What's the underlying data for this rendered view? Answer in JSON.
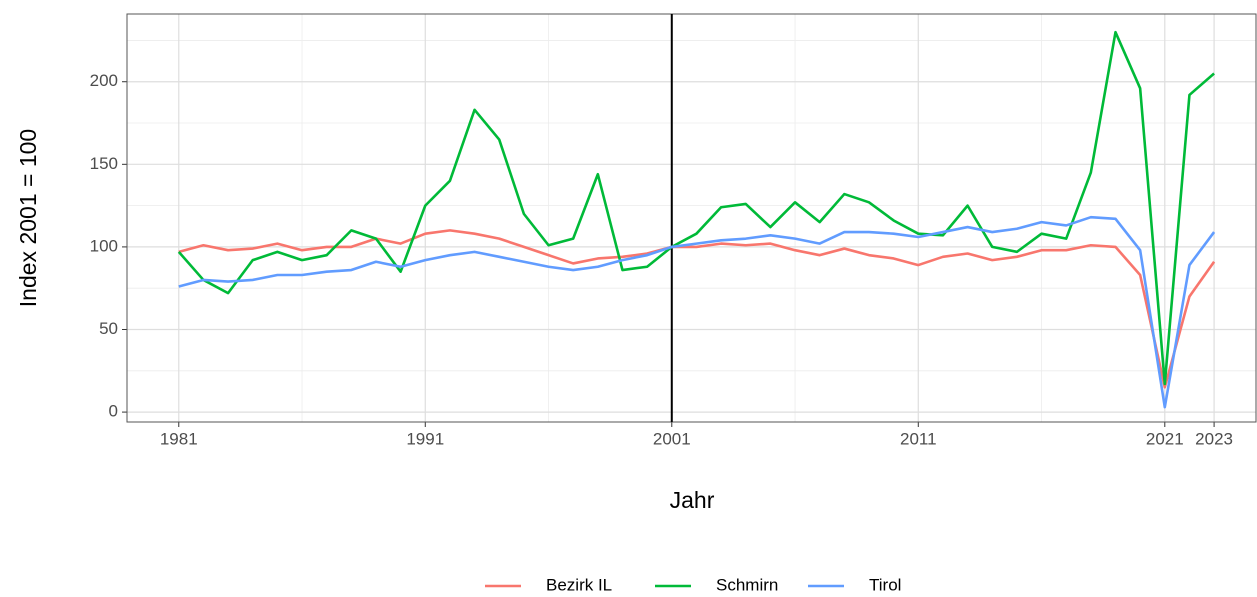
{
  "chart_data": {
    "type": "line",
    "x_label": "Jahr",
    "y_label": "Index 2001 = 100",
    "x": [
      1981,
      1982,
      1983,
      1984,
      1985,
      1986,
      1987,
      1988,
      1989,
      1990,
      1991,
      1992,
      1993,
      1994,
      1995,
      1996,
      1997,
      1998,
      1999,
      2000,
      2001,
      2002,
      2003,
      2004,
      2005,
      2006,
      2007,
      2008,
      2009,
      2010,
      2011,
      2012,
      2013,
      2014,
      2015,
      2016,
      2017,
      2018,
      2019,
      2020,
      2021,
      2022,
      2023
    ],
    "series": [
      {
        "name": "Bezirk IL",
        "color": "#F8766D",
        "values": [
          97,
          101,
          98,
          99,
          102,
          98,
          100,
          100,
          105,
          102,
          108,
          110,
          108,
          105,
          100,
          95,
          90,
          93,
          94,
          96,
          100,
          100,
          102,
          101,
          102,
          98,
          95,
          99,
          95,
          93,
          89,
          94,
          96,
          92,
          94,
          98,
          98,
          101,
          100,
          83,
          15,
          70,
          91
        ]
      },
      {
        "name": "Schmirn",
        "color": "#00BA38",
        "values": [
          97,
          80,
          72,
          92,
          97,
          92,
          95,
          110,
          105,
          85,
          125,
          140,
          183,
          165,
          120,
          101,
          105,
          144,
          86,
          88,
          100,
          108,
          124,
          126,
          112,
          127,
          115,
          132,
          127,
          116,
          108,
          107,
          125,
          100,
          97,
          108,
          105,
          145,
          230,
          196,
          17,
          192,
          205
        ]
      },
      {
        "name": "Tirol",
        "color": "#619CFF",
        "values": [
          76,
          80,
          79,
          80,
          83,
          83,
          85,
          86,
          91,
          88,
          92,
          95,
          97,
          94,
          91,
          88,
          86,
          88,
          92,
          95,
          100,
          102,
          104,
          105,
          107,
          105,
          102,
          109,
          109,
          108,
          106,
          109,
          112,
          109,
          111,
          115,
          113,
          118,
          117,
          98,
          3,
          89,
          109
        ]
      }
    ],
    "xlim": [
      1978.9,
      2024.7
    ],
    "ylim": [
      -6,
      241
    ],
    "xticks": [
      1981,
      1991,
      2001,
      2011,
      2021,
      2023
    ],
    "yticks": [
      0,
      50,
      100,
      150,
      200
    ],
    "x_minor_ticks": [
      1986,
      1996,
      2006,
      2016
    ],
    "y_minor_ticks": [
      25,
      75,
      125,
      175,
      225
    ],
    "vline": 2001,
    "grid": true,
    "legend_position": "bottom"
  }
}
